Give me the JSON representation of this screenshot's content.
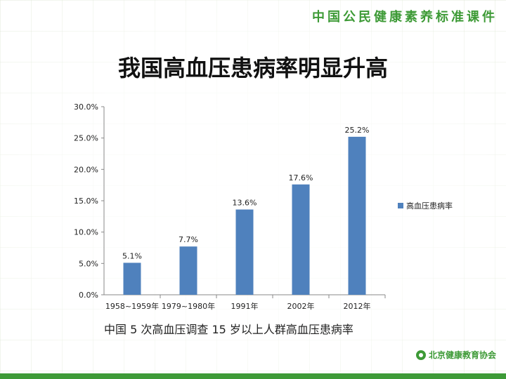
{
  "header": {
    "brand": "中国公民健康素养标准课件"
  },
  "slide": {
    "title": "我国高血压患病率明显升高",
    "caption": "中国 5 次高血压调查 15 岁以上人群高血压患病率"
  },
  "footer": {
    "org": "北京健康教育协会"
  },
  "colors": {
    "bar": "#4f81bd",
    "accent": "#3d9a36"
  },
  "chart_data": {
    "type": "bar",
    "categories": [
      "1958~1959年",
      "1979~1980年",
      "1991年",
      "2002年",
      "2012年"
    ],
    "series": [
      {
        "name": "高血压患病率",
        "values": [
          5.1,
          7.7,
          13.6,
          17.6,
          25.2
        ]
      }
    ],
    "data_labels": [
      "5.1%",
      "7.7%",
      "13.6%",
      "17.6%",
      "25.2%"
    ],
    "y_ticks": [
      "0.0%",
      "5.0%",
      "10.0%",
      "15.0%",
      "20.0%",
      "25.0%",
      "30.0%"
    ],
    "ylim": [
      0,
      30
    ],
    "grid": false,
    "legend": "right"
  }
}
